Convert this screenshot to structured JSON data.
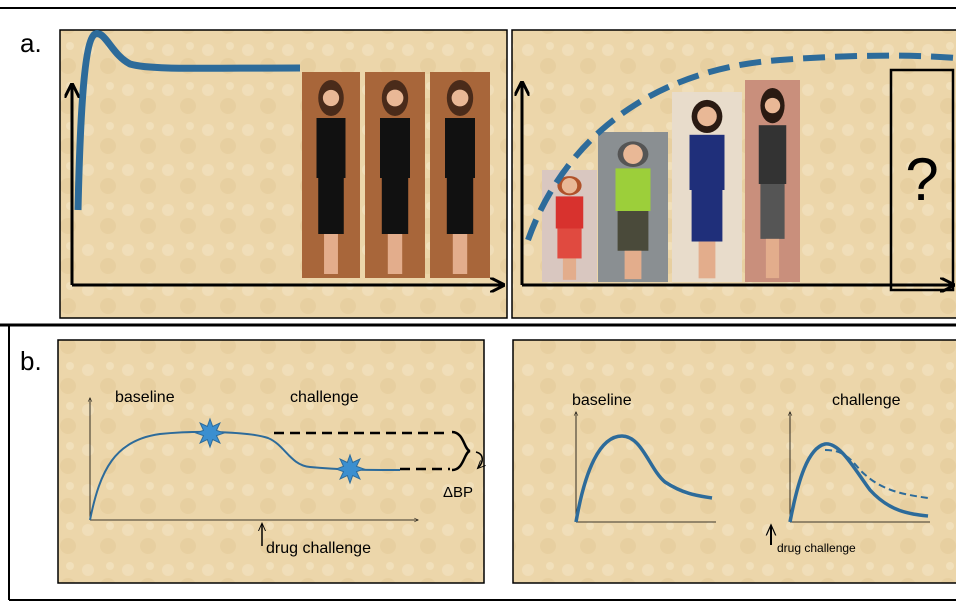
{
  "panel_a": {
    "label": "a.",
    "question": "?"
  },
  "panel_b": {
    "label": "b.",
    "left": {
      "baseline": "baseline",
      "challenge": "challenge",
      "delta": "ΔBP",
      "drug": "drug challenge"
    },
    "right": {
      "baseline": "baseline",
      "challenge": "challenge",
      "drug": "drug challenge"
    }
  }
}
